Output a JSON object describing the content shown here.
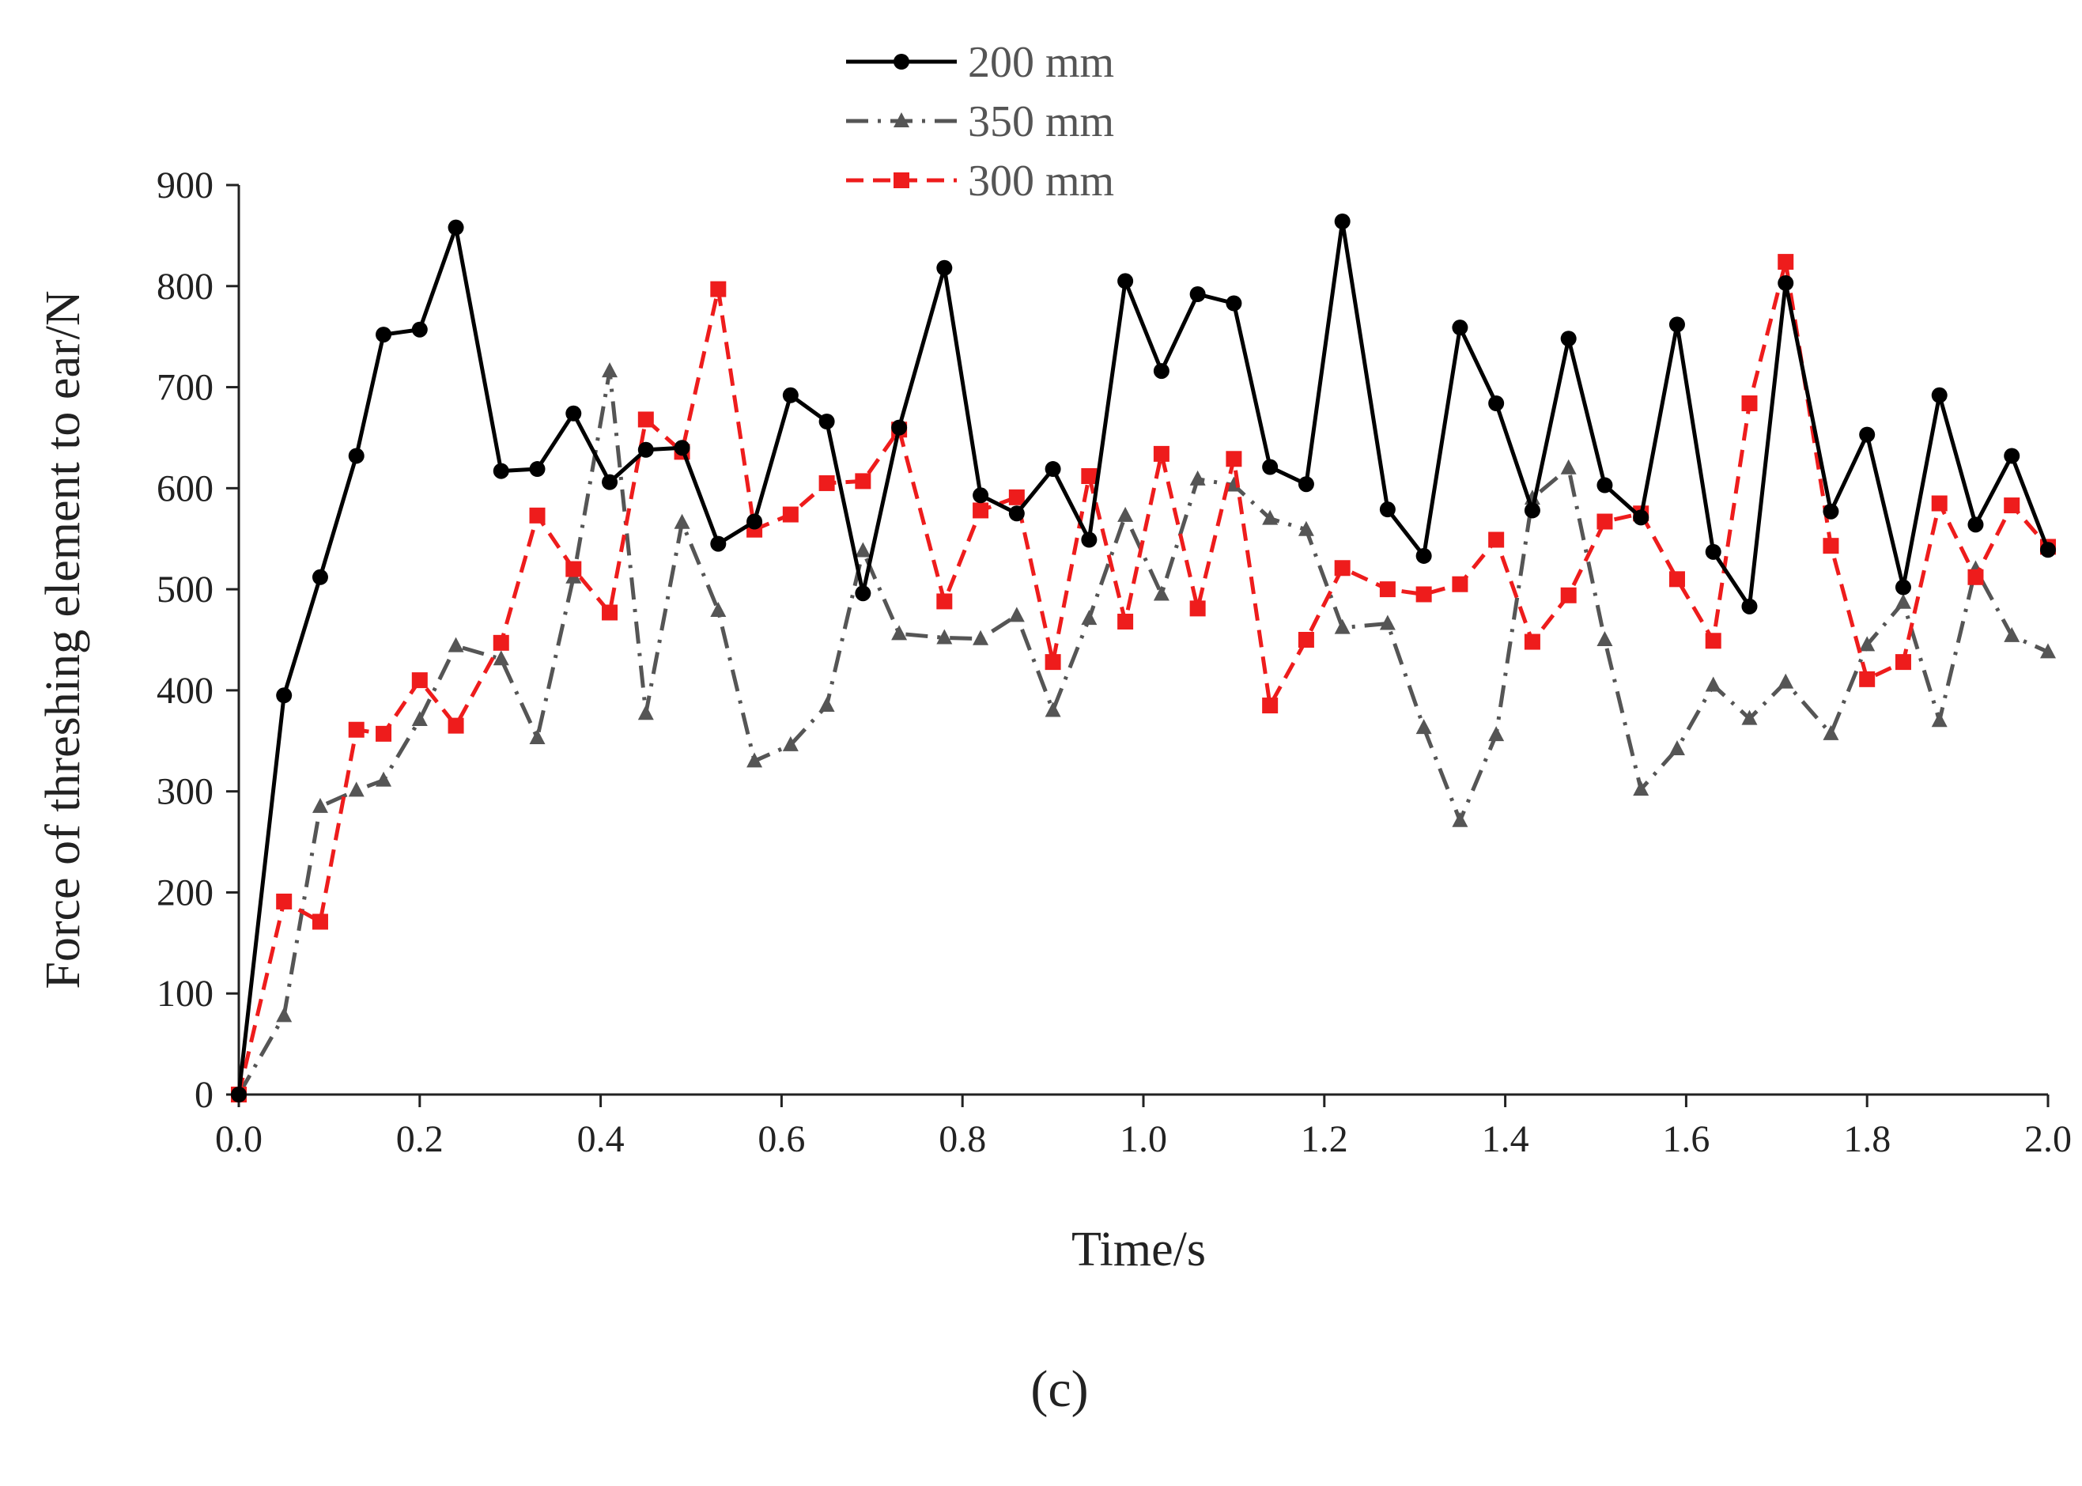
{
  "chart_data": {
    "type": "line",
    "title": "",
    "xlabel": "Time/s",
    "ylabel": "Force of threshing element to ear/N",
    "xlim": [
      0.0,
      2.0
    ],
    "ylim": [
      0,
      900
    ],
    "xticks": [
      "0.0",
      "0.2",
      "0.4",
      "0.6",
      "0.8",
      "1.0",
      "1.2",
      "1.4",
      "1.6",
      "1.8",
      "2.0"
    ],
    "yticks": [
      "0",
      "100",
      "200",
      "300",
      "400",
      "500",
      "600",
      "700",
      "800",
      "900"
    ],
    "grid": false,
    "legend_position": "top-center",
    "series": [
      {
        "name": "200 mm",
        "color": "#000000",
        "marker": "circle",
        "line_style": "solid",
        "x": [
          0.0,
          0.05,
          0.09,
          0.13,
          0.16,
          0.2,
          0.24,
          0.29,
          0.33,
          0.37,
          0.41,
          0.45,
          0.49,
          0.53,
          0.57,
          0.61,
          0.65,
          0.69,
          0.73,
          0.78,
          0.82,
          0.86,
          0.9,
          0.94,
          0.98,
          1.02,
          1.06,
          1.1,
          1.14,
          1.18,
          1.22,
          1.27,
          1.31,
          1.35,
          1.39,
          1.43,
          1.47,
          1.51,
          1.55,
          1.59,
          1.63,
          1.67,
          1.71,
          1.76,
          1.8,
          1.84,
          1.88,
          1.92,
          1.96,
          2.0
        ],
        "y": [
          0,
          395,
          512,
          632,
          752,
          757,
          858,
          617,
          619,
          674,
          606,
          638,
          640,
          545,
          567,
          692,
          666,
          496,
          660,
          818,
          593,
          575,
          619,
          549,
          805,
          716,
          792,
          783,
          621,
          604,
          864,
          579,
          533,
          759,
          684,
          578,
          748,
          603,
          571,
          762,
          537,
          483,
          803,
          577,
          653,
          502,
          692,
          564,
          632,
          539
        ]
      },
      {
        "name": "350 mm",
        "color": "#555555",
        "marker": "triangle",
        "line_style": "dash-dot",
        "x": [
          0.0,
          0.05,
          0.09,
          0.13,
          0.16,
          0.2,
          0.24,
          0.29,
          0.33,
          0.37,
          0.41,
          0.45,
          0.49,
          0.53,
          0.57,
          0.61,
          0.65,
          0.69,
          0.73,
          0.78,
          0.82,
          0.86,
          0.9,
          0.94,
          0.98,
          1.02,
          1.06,
          1.1,
          1.14,
          1.18,
          1.22,
          1.27,
          1.31,
          1.35,
          1.39,
          1.43,
          1.47,
          1.51,
          1.55,
          1.59,
          1.63,
          1.67,
          1.71,
          1.76,
          1.8,
          1.84,
          1.88,
          1.92,
          1.96,
          2.0
        ],
        "y": [
          0,
          78,
          285,
          301,
          311,
          371,
          444,
          431,
          353,
          512,
          716,
          377,
          566,
          479,
          330,
          346,
          385,
          538,
          456,
          452,
          451,
          474,
          380,
          471,
          573,
          495,
          609,
          603,
          570,
          559,
          462,
          466,
          363,
          271,
          356,
          590,
          620,
          450,
          302,
          342,
          405,
          372,
          408,
          357,
          445,
          487,
          370,
          520,
          454,
          438
        ]
      },
      {
        "name": "300 mm",
        "color": "#ee1c1c",
        "marker": "square",
        "line_style": "dashed",
        "x": [
          0.0,
          0.05,
          0.09,
          0.13,
          0.16,
          0.2,
          0.24,
          0.29,
          0.33,
          0.37,
          0.41,
          0.45,
          0.49,
          0.53,
          0.57,
          0.61,
          0.65,
          0.69,
          0.73,
          0.78,
          0.82,
          0.86,
          0.9,
          0.94,
          0.98,
          1.02,
          1.06,
          1.1,
          1.14,
          1.18,
          1.22,
          1.27,
          1.31,
          1.35,
          1.39,
          1.43,
          1.47,
          1.51,
          1.55,
          1.59,
          1.63,
          1.67,
          1.71,
          1.76,
          1.8,
          1.84,
          1.88,
          1.92,
          1.96,
          2.0
        ],
        "y": [
          0,
          191,
          171,
          361,
          357,
          410,
          365,
          447,
          573,
          520,
          477,
          668,
          636,
          797,
          559,
          574,
          605,
          607,
          658,
          488,
          578,
          591,
          428,
          612,
          468,
          634,
          481,
          629,
          385,
          450,
          521,
          500,
          495,
          505,
          549,
          448,
          494,
          567,
          575,
          510,
          449,
          684,
          824,
          543,
          411,
          428,
          585,
          512,
          583,
          542
        ]
      }
    ]
  },
  "caption": "(c)"
}
